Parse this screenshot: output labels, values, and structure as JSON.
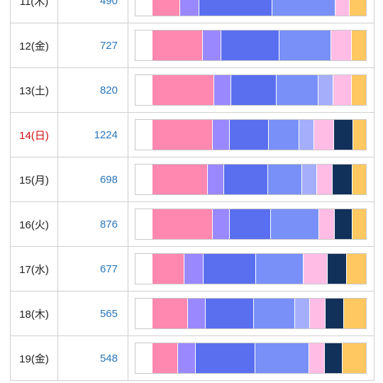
{
  "colors": {
    "white": "#ffffff",
    "pink": "#ff88b0",
    "lavender": "#9a88ff",
    "blue": "#5a6ff0",
    "cornflower": "#7890f8",
    "periwinkle": "#a4aefa",
    "light_pink": "#ffbde6",
    "navy": "#12315a",
    "gold": "#ffc860"
  },
  "rows": [
    {
      "day": "11(木)",
      "count": "490",
      "holiday": false,
      "segments": [
        {
          "color": "white",
          "w": 24
        },
        {
          "color": "pink",
          "w": 39
        },
        {
          "color": "lavender",
          "w": 26
        },
        {
          "color": "blue",
          "w": 105
        },
        {
          "color": "cornflower",
          "w": 91
        },
        {
          "color": "light_pink",
          "w": 19
        },
        {
          "color": "gold",
          "w": 24
        }
      ]
    },
    {
      "day": "12(金)",
      "count": "727",
      "holiday": false,
      "segments": [
        {
          "color": "white",
          "w": 24
        },
        {
          "color": "pink",
          "w": 72
        },
        {
          "color": "lavender",
          "w": 26
        },
        {
          "color": "blue",
          "w": 84
        },
        {
          "color": "cornflower",
          "w": 74
        },
        {
          "color": "light_pink",
          "w": 29
        },
        {
          "color": "gold",
          "w": 21
        }
      ]
    },
    {
      "day": "13(土)",
      "count": "820",
      "holiday": false,
      "segments": [
        {
          "color": "white",
          "w": 24
        },
        {
          "color": "pink",
          "w": 89
        },
        {
          "color": "lavender",
          "w": 24
        },
        {
          "color": "blue",
          "w": 65
        },
        {
          "color": "cornflower",
          "w": 61
        },
        {
          "color": "periwinkle",
          "w": 20
        },
        {
          "color": "light_pink",
          "w": 26
        },
        {
          "color": "gold",
          "w": 21
        }
      ]
    },
    {
      "day": "14(日)",
      "count": "1224",
      "holiday": true,
      "segments": [
        {
          "color": "white",
          "w": 24
        },
        {
          "color": "pink",
          "w": 87
        },
        {
          "color": "lavender",
          "w": 24
        },
        {
          "color": "blue",
          "w": 57
        },
        {
          "color": "cornflower",
          "w": 43
        },
        {
          "color": "periwinkle",
          "w": 21
        },
        {
          "color": "light_pink",
          "w": 28
        },
        {
          "color": "navy",
          "w": 27
        },
        {
          "color": "gold",
          "w": 19
        }
      ]
    },
    {
      "day": "15(月)",
      "count": "698",
      "holiday": false,
      "segments": [
        {
          "color": "white",
          "w": 24
        },
        {
          "color": "pink",
          "w": 80
        },
        {
          "color": "lavender",
          "w": 23
        },
        {
          "color": "blue",
          "w": 64
        },
        {
          "color": "cornflower",
          "w": 48
        },
        {
          "color": "periwinkle",
          "w": 21
        },
        {
          "color": "light_pink",
          "w": 22
        },
        {
          "color": "navy",
          "w": 28
        },
        {
          "color": "gold",
          "w": 20
        }
      ]
    },
    {
      "day": "16(火)",
      "count": "876",
      "holiday": false,
      "segments": [
        {
          "color": "white",
          "w": 24
        },
        {
          "color": "pink",
          "w": 87
        },
        {
          "color": "lavender",
          "w": 24
        },
        {
          "color": "blue",
          "w": 59
        },
        {
          "color": "cornflower",
          "w": 70
        },
        {
          "color": "light_pink",
          "w": 21
        },
        {
          "color": "navy",
          "w": 25
        },
        {
          "color": "gold",
          "w": 20
        }
      ]
    },
    {
      "day": "17(水)",
      "count": "677",
      "holiday": false,
      "segments": [
        {
          "color": "white",
          "w": 24
        },
        {
          "color": "pink",
          "w": 46
        },
        {
          "color": "lavender",
          "w": 26
        },
        {
          "color": "blue",
          "w": 76
        },
        {
          "color": "cornflower",
          "w": 69
        },
        {
          "color": "light_pink",
          "w": 34
        },
        {
          "color": "navy",
          "w": 27
        },
        {
          "color": "gold",
          "w": 28
        }
      ]
    },
    {
      "day": "18(木)",
      "count": "565",
      "holiday": false,
      "segments": [
        {
          "color": "white",
          "w": 24
        },
        {
          "color": "pink",
          "w": 51
        },
        {
          "color": "lavender",
          "w": 25
        },
        {
          "color": "blue",
          "w": 70
        },
        {
          "color": "cornflower",
          "w": 59
        },
        {
          "color": "periwinkle",
          "w": 21
        },
        {
          "color": "light_pink",
          "w": 22
        },
        {
          "color": "navy",
          "w": 26
        },
        {
          "color": "gold",
          "w": 32
        }
      ]
    },
    {
      "day": "19(金)",
      "count": "548",
      "holiday": false,
      "segments": [
        {
          "color": "white",
          "w": 24
        },
        {
          "color": "pink",
          "w": 36
        },
        {
          "color": "lavender",
          "w": 25
        },
        {
          "color": "blue",
          "w": 86
        },
        {
          "color": "cornflower",
          "w": 78
        },
        {
          "color": "light_pink",
          "w": 22
        },
        {
          "color": "navy",
          "w": 25
        },
        {
          "color": "gold",
          "w": 34
        }
      ]
    }
  ]
}
